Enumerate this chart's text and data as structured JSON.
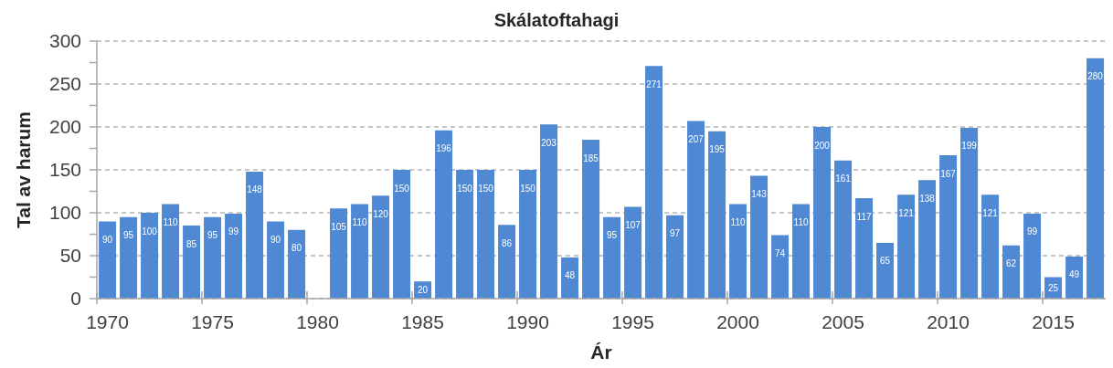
{
  "chart_data": {
    "type": "bar",
    "title": "Skálatoftahagi",
    "xlabel": "Ár",
    "ylabel": "Tal av harum",
    "categories": [
      "1970",
      null,
      null,
      null,
      null,
      "1975",
      null,
      null,
      null,
      null,
      "1980",
      null,
      null,
      null,
      null,
      "1985",
      null,
      null,
      null,
      null,
      "1990",
      null,
      null,
      null,
      null,
      "1995",
      null,
      null,
      null,
      null,
      "2000",
      null,
      null,
      null,
      null,
      "2005",
      null,
      null,
      null,
      null,
      "2010",
      null,
      null,
      null,
      null,
      "2015",
      null,
      null
    ],
    "values": [
      90,
      95,
      100,
      110,
      85,
      95,
      99,
      148,
      90,
      80,
      null,
      105,
      110,
      120,
      150,
      20,
      196,
      150,
      150,
      86,
      150,
      203,
      48,
      185,
      95,
      107,
      271,
      97,
      207,
      195,
      110,
      143,
      74,
      110,
      200,
      161,
      117,
      65,
      121,
      138,
      167,
      199,
      121,
      62,
      99,
      25,
      49,
      280
    ],
    "color": "#4f88d3",
    "ylim": [
      0,
      300
    ],
    "yticks": [
      0,
      {
        "value": 25,
        "label": null
      },
      50,
      {
        "value": 75,
        "label": null
      },
      100,
      {
        "value": 125,
        "label": null
      },
      150,
      {
        "value": 175,
        "label": null
      },
      200,
      {
        "value": 225,
        "label": null
      },
      250,
      {
        "value": 275,
        "label": null
      },
      300
    ],
    "grid": "y",
    "data_labels": true
  }
}
